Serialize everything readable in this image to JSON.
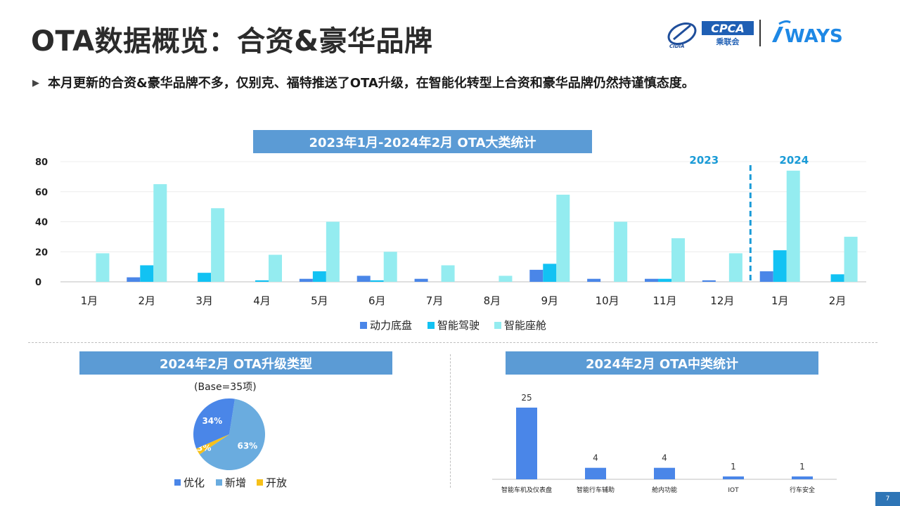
{
  "header": {
    "title": "OTA数据概览：合资&豪华品牌",
    "logo_cpca_text": "CPCA",
    "logo_cpca_sub": "乘联会",
    "logo_cidia_text": "CIDIA",
    "logo_ways_text": "WAYS"
  },
  "summary": {
    "bullet_text": "本月更新的合资&豪华品牌不多，仅别克、福特推送了OTA升级，在智能化转型上合资和豪华品牌仍然持谨慎态度。"
  },
  "colors": {
    "powertrain": "#4a86e8",
    "adas": "#12c2f3",
    "cabin": "#94ecf0",
    "banner": "#5b9bd5",
    "year_divider": "#1a9bd7",
    "pie_optimize": "#4a86e8",
    "pie_new": "#6aacdf",
    "pie_open": "#f6c019",
    "mid_bar": "#4a86e8"
  },
  "chart_data": [
    {
      "type": "bar",
      "title": "2023年1月-2024年2月 OTA大类统计",
      "categories": [
        "1月",
        "2月",
        "3月",
        "4月",
        "5月",
        "6月",
        "7月",
        "8月",
        "9月",
        "10月",
        "11月",
        "12月",
        "1月",
        "2月"
      ],
      "series": [
        {
          "name": "动力底盘",
          "values": [
            0,
            3,
            0,
            0,
            2,
            4,
            2,
            0,
            8,
            2,
            2,
            1,
            7,
            0
          ]
        },
        {
          "name": "智能驾驶",
          "values": [
            0,
            11,
            6,
            1,
            7,
            1,
            0,
            0,
            12,
            0,
            2,
            0,
            21,
            5
          ]
        },
        {
          "name": "智能座舱",
          "values": [
            19,
            65,
            49,
            18,
            40,
            20,
            11,
            4,
            58,
            40,
            29,
            19,
            74,
            30
          ]
        }
      ],
      "ylim": [
        0,
        80
      ],
      "yticks": [
        0,
        20,
        40,
        60,
        80
      ],
      "year_labels": [
        "2023",
        "2024"
      ],
      "legend_position": "bottom",
      "grid": true
    },
    {
      "type": "pie",
      "title": "2024年2月 OTA升级类型",
      "subtitle": "(Base=35项)",
      "labels": [
        "优化",
        "新增",
        "开放"
      ],
      "values": [
        34,
        63,
        3
      ],
      "value_labels": [
        "34%",
        "63%",
        "3%"
      ],
      "legend_position": "bottom"
    },
    {
      "type": "bar",
      "title": "2024年2月 OTA中类统计",
      "categories": [
        "智能车机及仪表盘",
        "智能行车辅助",
        "舱内功能",
        "IOT",
        "行车安全"
      ],
      "values": [
        25,
        4,
        4,
        1,
        1
      ],
      "ylim": [
        0,
        25
      ]
    }
  ],
  "footer": {
    "page_number": "7"
  }
}
